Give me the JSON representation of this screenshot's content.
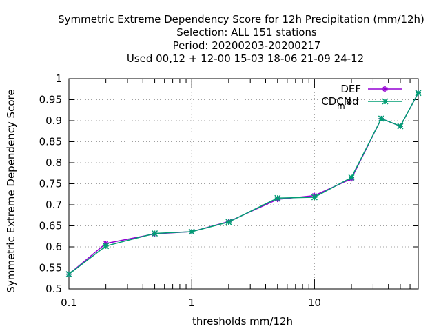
{
  "chart_data": {
    "type": "line",
    "title_lines": [
      "Symmetric Extreme Dependency Score  for 12h Precipitation (mm/12h)",
      "Selection: ALL    151 stations",
      "Period: 20200203-20200217",
      "Used  00,12  + 12-00 15-03 18-06 21-09 24-12"
    ],
    "xlabel": "thresholds mm/12h",
    "ylabel": "Symmetric Extreme Dependency Score",
    "x_scale": "log",
    "xlim": [
      0.1,
      70
    ],
    "ylim": [
      0.5,
      1.0
    ],
    "x_ticks": [
      {
        "value": 0.1,
        "label": "0.1"
      },
      {
        "value": 1,
        "label": "1"
      },
      {
        "value": 10,
        "label": "10"
      }
    ],
    "y_ticks": [
      {
        "value": 0.5,
        "label": "0.5"
      },
      {
        "value": 0.55,
        "label": "0.55"
      },
      {
        "value": 0.6,
        "label": "0.6"
      },
      {
        "value": 0.65,
        "label": "0.65"
      },
      {
        "value": 0.7,
        "label": "0.7"
      },
      {
        "value": 0.75,
        "label": "0.75"
      },
      {
        "value": 0.8,
        "label": "0.8"
      },
      {
        "value": 0.85,
        "label": "0.85"
      },
      {
        "value": 0.9,
        "label": "0.9"
      },
      {
        "value": 0.95,
        "label": "0.95"
      },
      {
        "value": 1.0,
        "label": "1"
      }
    ],
    "grid": true,
    "legend_position": "top-right",
    "x": [
      0.1,
      0.2,
      0.5,
      1,
      2,
      5,
      10,
      20,
      35,
      50,
      70
    ],
    "series": [
      {
        "name": "DEF",
        "color": "#9400d3",
        "marker": "plus",
        "values": [
          0.535,
          0.608,
          0.631,
          0.636,
          0.66,
          0.713,
          0.722,
          0.762,
          0.905,
          0.887,
          0.966
        ]
      },
      {
        "name": "CDCN_mod",
        "legend_parts": [
          "CDCN",
          "m",
          "od"
        ],
        "color": "#009e73",
        "marker": "cross",
        "values": [
          0.535,
          0.602,
          0.632,
          0.636,
          0.659,
          0.716,
          0.718,
          0.765,
          0.905,
          0.887,
          0.966
        ]
      }
    ]
  }
}
